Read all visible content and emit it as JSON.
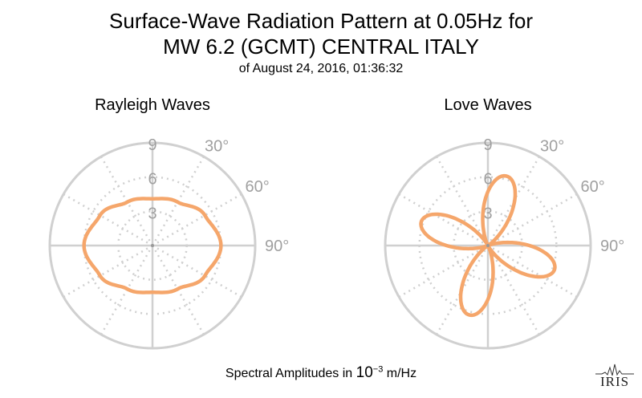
{
  "title": {
    "line1": "Surface-Wave Radiation Pattern at 0.05Hz for",
    "line2": "MW 6.2 (GCMT) CENTRAL ITALY",
    "line3": "of August 24, 2016, 01:36:32"
  },
  "footer": {
    "prefix": "Spectral Amplitudes in ",
    "base": "10",
    "exponent": "−3",
    "unit": " m/Hz"
  },
  "logo": {
    "text": "IRIS",
    "icon": "iris-seismogram-logo"
  },
  "colors": {
    "pattern": "#f5a66b",
    "grid": "#d0d0d0",
    "ticklabel": "#a0a0a0"
  },
  "chart_data": [
    {
      "type": "polar-line",
      "title": "Rayleigh Waves",
      "radial_ticks": [
        "3",
        "6",
        "9"
      ],
      "radial_range": [
        0,
        9
      ],
      "angular_ticks": [
        "30°",
        "60°",
        "90°"
      ],
      "angular_direction": "clockwise-from-north",
      "theta_deg": [
        0,
        30,
        60,
        90,
        120,
        150,
        180,
        210,
        240,
        270,
        300,
        330
      ],
      "r": [
        4.1,
        4.4,
        5.3,
        6.0,
        5.3,
        4.4,
        4.1,
        4.4,
        5.3,
        6.0,
        5.3,
        4.4
      ],
      "grid": true
    },
    {
      "type": "polar-line",
      "title": "Love Waves",
      "radial_ticks": [
        "3",
        "6",
        "9"
      ],
      "radial_range": [
        0,
        9
      ],
      "angular_ticks": [
        "30°",
        "60°",
        "90°"
      ],
      "angular_direction": "clockwise-from-north",
      "lobes": [
        {
          "theta_deg": 15,
          "r_max": 6.3
        },
        {
          "theta_deg": 110,
          "r_max": 6.2
        },
        {
          "theta_deg": 195,
          "r_max": 6.3
        },
        {
          "theta_deg": 290,
          "r_max": 6.2
        }
      ],
      "grid": true
    }
  ]
}
